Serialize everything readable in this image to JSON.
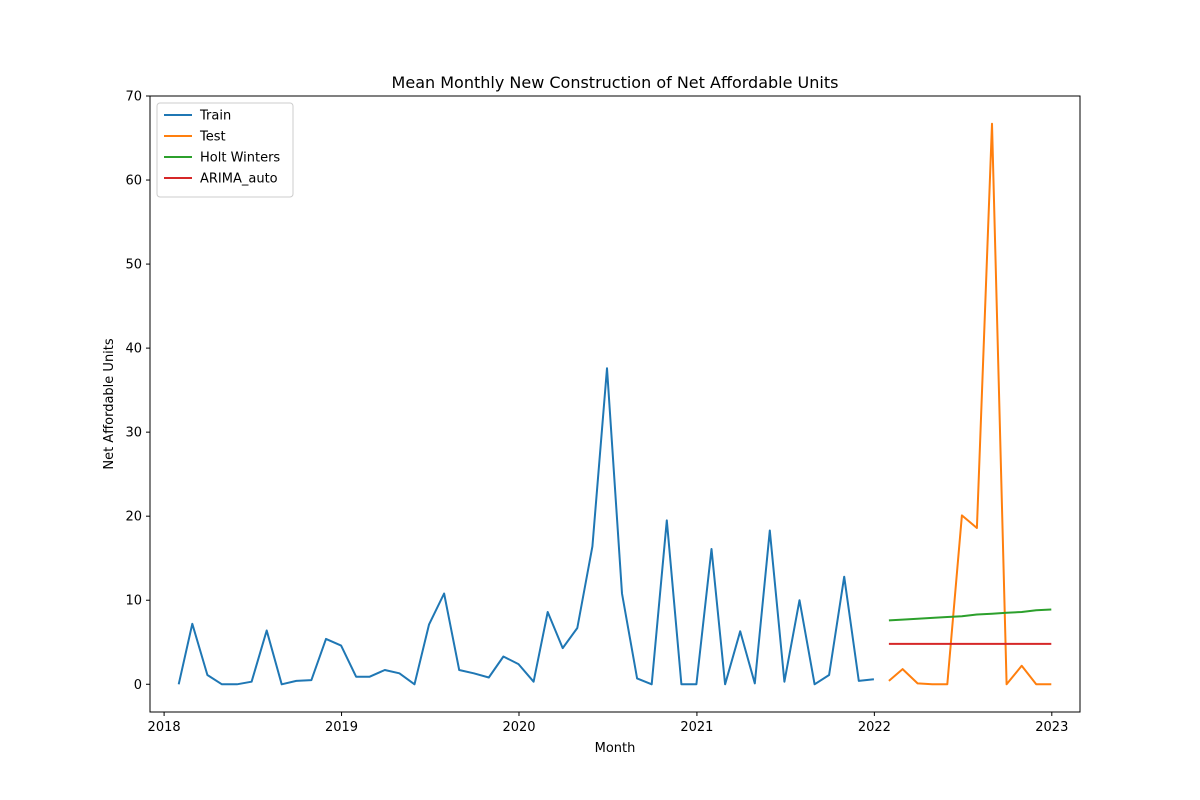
{
  "chart_data": {
    "type": "line",
    "title": "Mean Monthly New Construction of Net Affordable Units",
    "xlabel": "Month",
    "ylabel": "Net Affordable Units",
    "xlim": [
      "2017-12-03",
      "2023-02-28"
    ],
    "ylim": [
      -3.3,
      70
    ],
    "x_ticks": [
      "2018",
      "2019",
      "2020",
      "2021",
      "2022",
      "2023"
    ],
    "y_ticks": [
      0,
      10,
      20,
      30,
      40,
      50,
      60,
      70
    ],
    "grid": false,
    "legend_position": "upper-left",
    "series": [
      {
        "name": "Train",
        "color": "#1f77b4",
        "x": [
          "2018-01-31",
          "2018-02-28",
          "2018-03-31",
          "2018-04-30",
          "2018-05-31",
          "2018-06-30",
          "2018-07-31",
          "2018-08-31",
          "2018-09-30",
          "2018-10-31",
          "2018-11-30",
          "2018-12-31",
          "2019-01-31",
          "2019-02-28",
          "2019-03-31",
          "2019-04-30",
          "2019-05-31",
          "2019-06-30",
          "2019-07-31",
          "2019-08-31",
          "2019-09-30",
          "2019-10-31",
          "2019-11-30",
          "2019-12-31",
          "2020-01-31",
          "2020-02-29",
          "2020-03-31",
          "2020-04-30",
          "2020-05-31",
          "2020-06-30",
          "2020-07-31",
          "2020-08-31",
          "2020-09-30",
          "2020-10-31",
          "2020-11-30",
          "2020-12-31",
          "2021-01-31",
          "2021-02-28",
          "2021-03-31",
          "2021-04-30",
          "2021-05-31",
          "2021-06-30",
          "2021-07-31",
          "2021-08-31",
          "2021-09-30",
          "2021-10-31",
          "2021-11-30",
          "2021-12-31"
        ],
        "values": [
          0.0,
          7.2,
          1.1,
          0.0,
          0.0,
          0.3,
          6.4,
          0.0,
          0.4,
          0.5,
          5.4,
          4.6,
          0.9,
          0.9,
          1.7,
          1.3,
          0.0,
          7.1,
          10.8,
          1.7,
          1.3,
          0.8,
          3.3,
          2.4,
          0.3,
          8.6,
          4.3,
          6.7,
          16.4,
          37.6,
          10.8,
          0.7,
          0.0,
          19.5,
          0.0,
          0.0,
          16.1,
          0.0,
          6.3,
          0.1,
          18.3,
          0.3,
          10.0,
          0.0,
          1.1,
          12.8,
          0.4,
          0.6
        ]
      },
      {
        "name": "Test",
        "color": "#ff7f0e",
        "x": [
          "2022-01-31",
          "2022-02-28",
          "2022-03-31",
          "2022-04-30",
          "2022-05-31",
          "2022-06-30",
          "2022-07-31",
          "2022-08-31",
          "2022-09-30",
          "2022-10-31",
          "2022-11-30",
          "2022-12-31"
        ],
        "values": [
          0.4,
          1.8,
          0.1,
          0.0,
          0.0,
          20.1,
          18.6,
          66.7,
          0.0,
          2.2,
          0.0,
          0.0
        ]
      },
      {
        "name": "Holt Winters",
        "color": "#2ca02c",
        "x": [
          "2022-01-31",
          "2022-02-28",
          "2022-03-31",
          "2022-04-30",
          "2022-05-31",
          "2022-06-30",
          "2022-07-31",
          "2022-08-31",
          "2022-09-30",
          "2022-10-31",
          "2022-11-30",
          "2022-12-31"
        ],
        "values": [
          7.6,
          7.7,
          7.8,
          7.9,
          8.0,
          8.1,
          8.3,
          8.4,
          8.5,
          8.6,
          8.8,
          8.9
        ]
      },
      {
        "name": "ARIMA_auto",
        "color": "#d62728",
        "x": [
          "2022-01-31",
          "2022-02-28",
          "2022-03-31",
          "2022-04-30",
          "2022-05-31",
          "2022-06-30",
          "2022-07-31",
          "2022-08-31",
          "2022-09-30",
          "2022-10-31",
          "2022-11-30",
          "2022-12-31"
        ],
        "values": [
          4.8,
          4.8,
          4.8,
          4.8,
          4.8,
          4.8,
          4.8,
          4.8,
          4.8,
          4.8,
          4.8,
          4.8
        ]
      }
    ]
  }
}
